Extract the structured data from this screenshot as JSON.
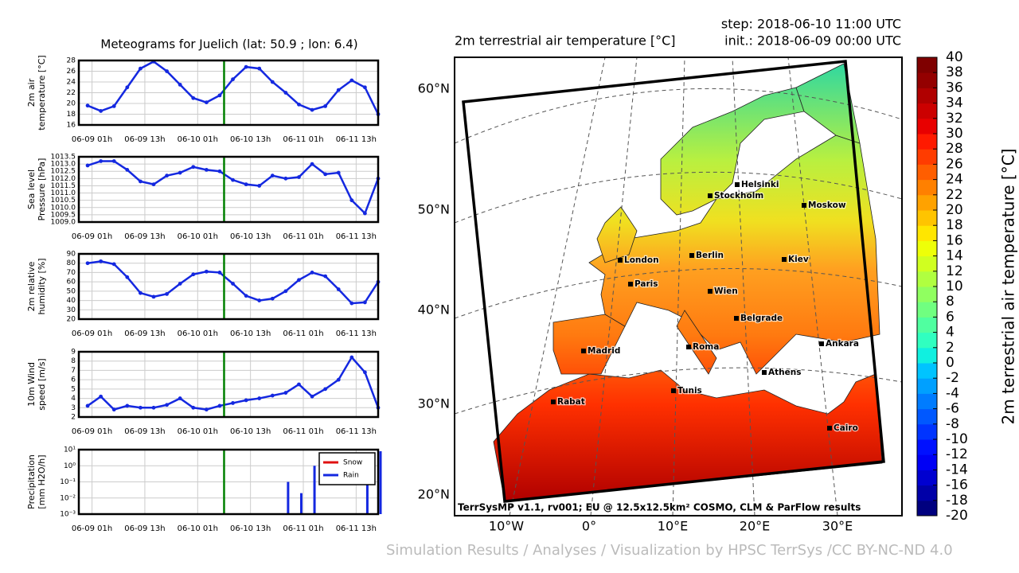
{
  "meteogram_title": "Meteograms for Juelich (lat: 50.9 ; lon: 6.4)",
  "chart_data": [
    {
      "type": "line",
      "ylabel": [
        "2m air",
        "temperature [°C]"
      ],
      "color": "#1428e0",
      "marker_x": 31,
      "marker_color": "#008000",
      "grid": true,
      "x": [
        0,
        3,
        6,
        9,
        12,
        15,
        18,
        21,
        24,
        27,
        30,
        33,
        36,
        39,
        42,
        45,
        48,
        51,
        54,
        57,
        60,
        63,
        66
      ],
      "values": [
        19.6,
        18.6,
        19.5,
        23,
        26.5,
        27.8,
        26,
        23.5,
        21,
        20.2,
        21.5,
        24.5,
        26.8,
        26.5,
        24,
        22,
        19.8,
        18.8,
        19.5,
        22.5,
        24.3,
        23,
        18
      ],
      "xlim": [
        -2,
        66
      ],
      "xticks": [
        {
          "value": 1,
          "label": "06-09 01h"
        },
        {
          "value": 13,
          "label": "06-09 13h"
        },
        {
          "value": 25,
          "label": "06-10 01h"
        },
        {
          "value": 37,
          "label": "06-10 13h"
        },
        {
          "value": 49,
          "label": "06-11 01h"
        },
        {
          "value": 61,
          "label": "06-11 13h"
        }
      ],
      "ylim": [
        16,
        28
      ],
      "yticks": [
        16,
        18,
        20,
        22,
        24,
        26,
        28
      ]
    },
    {
      "type": "line",
      "ylabel": [
        "Sea level",
        "Pressure [hPa]"
      ],
      "color": "#1428e0",
      "marker_x": 31,
      "marker_color": "#008000",
      "grid": true,
      "x": [
        0,
        3,
        6,
        9,
        12,
        15,
        18,
        21,
        24,
        27,
        30,
        33,
        36,
        39,
        42,
        45,
        48,
        51,
        54,
        57,
        60,
        63,
        66
      ],
      "values": [
        1012.9,
        1013.2,
        1013.2,
        1012.6,
        1011.8,
        1011.6,
        1012.2,
        1012.4,
        1012.8,
        1012.6,
        1012.5,
        1011.9,
        1011.6,
        1011.5,
        1012.2,
        1012.0,
        1012.1,
        1013.0,
        1012.3,
        1012.4,
        1010.5,
        1009.6,
        1012.0
      ],
      "xlim": [
        -2,
        66
      ],
      "xticks": [
        {
          "value": 1,
          "label": "06-09 01h"
        },
        {
          "value": 13,
          "label": "06-09 13h"
        },
        {
          "value": 25,
          "label": "06-10 01h"
        },
        {
          "value": 37,
          "label": "06-10 13h"
        },
        {
          "value": 49,
          "label": "06-11 01h"
        },
        {
          "value": 61,
          "label": "06-11 13h"
        }
      ],
      "ylim": [
        1009,
        1013.5
      ],
      "yticks": [
        {
          "value": 1009,
          "label": "1009.0"
        },
        1009.5,
        {
          "value": 1010,
          "label": "1010.0"
        },
        1010.5,
        {
          "value": 1011,
          "label": "1011.0"
        },
        1011.5,
        {
          "value": 1012,
          "label": "1012.0"
        },
        1012.5,
        {
          "value": 1013,
          "label": "1013.0"
        },
        1013.5
      ]
    },
    {
      "type": "line",
      "ylabel": [
        "2m relative",
        "humidity [%]"
      ],
      "color": "#1428e0",
      "marker_x": 31,
      "marker_color": "#008000",
      "grid": true,
      "x": [
        0,
        3,
        6,
        9,
        12,
        15,
        18,
        21,
        24,
        27,
        30,
        33,
        36,
        39,
        42,
        45,
        48,
        51,
        54,
        57,
        60,
        63,
        66
      ],
      "values": [
        80,
        82,
        79,
        65,
        48,
        44,
        47,
        58,
        68,
        71,
        70,
        58,
        45,
        40,
        42,
        50,
        62,
        70,
        66,
        52,
        37,
        38,
        60
      ],
      "xlim": [
        -2,
        66
      ],
      "xticks": [
        {
          "value": 1,
          "label": "06-09 01h"
        },
        {
          "value": 13,
          "label": "06-09 13h"
        },
        {
          "value": 25,
          "label": "06-10 01h"
        },
        {
          "value": 37,
          "label": "06-10 13h"
        },
        {
          "value": 49,
          "label": "06-11 01h"
        },
        {
          "value": 61,
          "label": "06-11 13h"
        }
      ],
      "ylim": [
        20,
        90
      ],
      "yticks": [
        20,
        30,
        40,
        50,
        60,
        70,
        80,
        90
      ]
    },
    {
      "type": "line",
      "ylabel": [
        "10m Wind",
        "speed [m/s]"
      ],
      "color": "#1428e0",
      "marker_x": 31,
      "marker_color": "#008000",
      "grid": true,
      "x": [
        0,
        3,
        6,
        9,
        12,
        15,
        18,
        21,
        24,
        27,
        30,
        33,
        36,
        39,
        42,
        45,
        48,
        51,
        54,
        57,
        60,
        63,
        66
      ],
      "values": [
        3.2,
        4.2,
        2.8,
        3.2,
        3.0,
        3.0,
        3.3,
        4.0,
        3.0,
        2.8,
        3.2,
        3.5,
        3.8,
        4.0,
        4.3,
        4.6,
        5.5,
        4.2,
        5.0,
        6.0,
        8.4,
        6.8,
        3.0
      ],
      "xlim": [
        -2,
        66
      ],
      "xticks": [
        {
          "value": 1,
          "label": "06-09 01h"
        },
        {
          "value": 13,
          "label": "06-09 13h"
        },
        {
          "value": 25,
          "label": "06-10 01h"
        },
        {
          "value": 37,
          "label": "06-10 13h"
        },
        {
          "value": 49,
          "label": "06-11 01h"
        },
        {
          "value": 61,
          "label": "06-11 13h"
        }
      ],
      "ylim": [
        2,
        9
      ],
      "yticks": [
        2,
        3,
        4,
        5,
        6,
        7,
        8,
        9
      ]
    },
    {
      "type": "bar",
      "ylabel": [
        "Precipitation",
        "[mm H2O/h]"
      ],
      "log": true,
      "legend": "upper right",
      "marker_x": 31,
      "marker_color": "#008000",
      "grid": true,
      "x": [
        0,
        3,
        6,
        9,
        12,
        15,
        18,
        21,
        24,
        27,
        30,
        33,
        36,
        39,
        42,
        45,
        48,
        51,
        54,
        57,
        60,
        63,
        66
      ],
      "series": [
        {
          "name": "Snow",
          "color": "#e01010",
          "values": [
            null,
            null,
            null,
            null,
            null,
            null,
            null,
            null,
            null,
            null,
            null,
            null,
            null,
            null,
            null,
            null,
            null,
            null,
            null,
            null,
            null,
            null,
            null
          ]
        },
        {
          "name": "Rain",
          "color": "#1428e0",
          "values": [
            null,
            null,
            null,
            null,
            null,
            null,
            null,
            null,
            null,
            null,
            null,
            null,
            null,
            null,
            null,
            0.1,
            0.02,
            1.0,
            null,
            null,
            null,
            3,
            8
          ]
        }
      ],
      "xlim": [
        -2,
        66
      ],
      "xticks": [
        {
          "value": 1,
          "label": "06-09 01h"
        },
        {
          "value": 13,
          "label": "06-09 13h"
        },
        {
          "value": 25,
          "label": "06-10 01h"
        },
        {
          "value": 37,
          "label": "06-10 13h"
        },
        {
          "value": 49,
          "label": "06-11 01h"
        },
        {
          "value": 61,
          "label": "06-11 13h"
        }
      ],
      "ylim": [
        0.001,
        10
      ],
      "yticks": [
        {
          "value": 0.001,
          "label": "10⁻³"
        },
        {
          "value": 0.01,
          "label": "10⁻²"
        },
        {
          "value": 0.1,
          "label": "10⁻¹"
        },
        {
          "value": 1,
          "label": "10⁰"
        },
        {
          "value": 10,
          "label": "10¹"
        }
      ]
    }
  ],
  "map": {
    "title": "2m terrestrial air temperature [°C]",
    "step": "step: 2018-06-10 11:00 UTC",
    "init": "init.: 2018-06-09 00:00 UTC",
    "lat_labels": [
      "60°N",
      "50°N",
      "40°N",
      "30°N",
      "20°N"
    ],
    "lon_labels": [
      "10°W",
      "0°",
      "10°E",
      "20°E",
      "30°E"
    ],
    "cities": [
      "Helsinki",
      "Stockholm",
      "Moskow",
      "London",
      "Berlin",
      "Kiev",
      "Paris",
      "Wien",
      "Belgrade",
      "Madrid",
      "Roma",
      "Ankara",
      "Athens",
      "Tunis",
      "Rabat",
      "Cairo"
    ],
    "credit": "TerrSysMP v1.1, rv001; EU @ 12.5x12.5km² COSMO, CLM & ParFlow results",
    "colorbar": {
      "label": "2m terrestrial air temperature [°C]",
      "lim": [
        -20,
        40
      ],
      "ticks": [
        40,
        38,
        36,
        34,
        32,
        30,
        28,
        26,
        24,
        22,
        20,
        18,
        16,
        14,
        12,
        10,
        8,
        6,
        4,
        2,
        0,
        -2,
        -4,
        -6,
        -8,
        -10,
        -12,
        -14,
        -16,
        -18,
        -20
      ],
      "colors": [
        "#00007f",
        "#0000a8",
        "#0000d0",
        "#0000f5",
        "#0010ff",
        "#0034ff",
        "#0058ff",
        "#007cff",
        "#00a0ff",
        "#00c4ff",
        "#10f0e0",
        "#30ffc0",
        "#50ffa0",
        "#70ff80",
        "#90ff60",
        "#b0ff40",
        "#d0ff20",
        "#eeff08",
        "#ffe600",
        "#ffc400",
        "#ffa200",
        "#ff8000",
        "#ff5e00",
        "#ff3c00",
        "#ff1a00",
        "#e80000",
        "#cc0000",
        "#b00000",
        "#940000",
        "#7f0000"
      ]
    }
  },
  "footer": "Simulation Results / Analyses / Visualization by HPSC TerrSys /CC BY-NC-ND 4.0"
}
